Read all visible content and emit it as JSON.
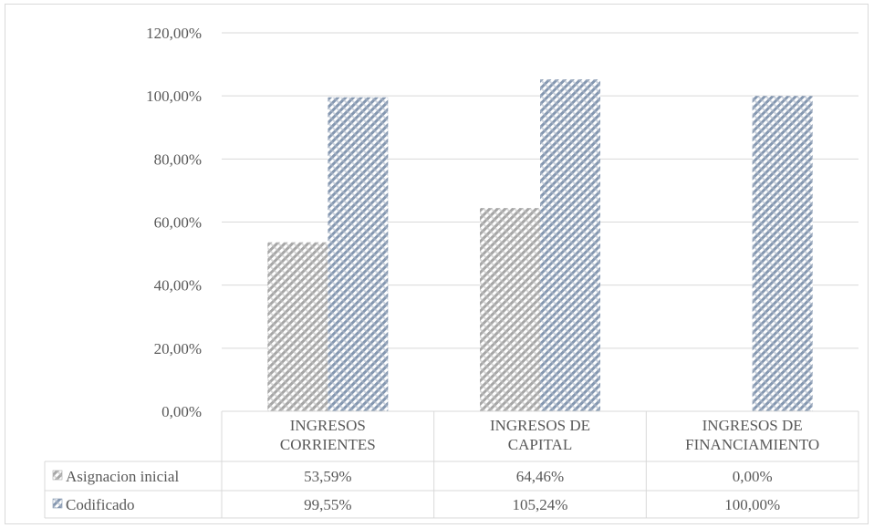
{
  "chart_data": {
    "type": "bar",
    "categories": [
      [
        "INGRESOS",
        "CORRIENTES"
      ],
      [
        "INGRESOS DE",
        "CAPITAL"
      ],
      [
        "INGRESOS DE",
        "FINANCIAMIENTO"
      ]
    ],
    "series": [
      {
        "name": "Asignacion inicial",
        "values": [
          53.59,
          64.46,
          0.0
        ],
        "labels": [
          "53,59%",
          "64,46%",
          "0,00%"
        ],
        "color": "#a6a6a6"
      },
      {
        "name": "Codificado",
        "values": [
          99.55,
          105.24,
          100.0
        ],
        "labels": [
          "99,55%",
          "105,24%",
          "100,00%"
        ],
        "color": "#8497b0"
      }
    ],
    "y_ticks": [
      "0,00%",
      "20,00%",
      "40,00%",
      "60,00%",
      "80,00%",
      "100,00%",
      "120,00%"
    ],
    "ylim": [
      0,
      120
    ],
    "grid": true,
    "legend": "data-table",
    "title": "",
    "xlabel": "",
    "ylabel": ""
  }
}
